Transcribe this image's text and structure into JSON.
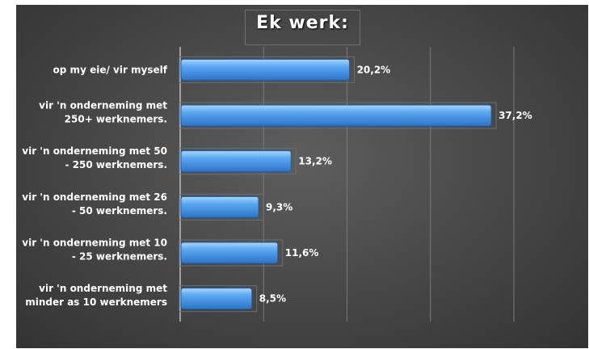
{
  "chart_data": {
    "type": "bar",
    "orientation": "horizontal",
    "title": "Ek werk:",
    "categories": [
      [
        "op my eie/ vir myself"
      ],
      [
        "vir 'n onderneming met",
        "250+ werknemers."
      ],
      [
        "vir 'n onderneming met 50",
        "- 250 werknemers."
      ],
      [
        "vir 'n onderneming met 26",
        "- 50 werknemers."
      ],
      [
        "vir 'n onderneming met 10",
        "- 25 werknemers."
      ],
      [
        "vir 'n onderneming met",
        "minder as 10 werknemers"
      ]
    ],
    "values": [
      20.2,
      37.2,
      13.2,
      9.3,
      11.6,
      8.5
    ],
    "value_labels": [
      "20,2%",
      "37,2%",
      "13,2%",
      "9,3%",
      "11,6%",
      "8,5%"
    ],
    "xlim": [
      0,
      40
    ],
    "grid": true,
    "colors": {
      "bar": "#3f8fe0",
      "bar_light": "#9fd0ff",
      "background": "#4a4a4a",
      "grid": "#7a7a7a"
    }
  }
}
